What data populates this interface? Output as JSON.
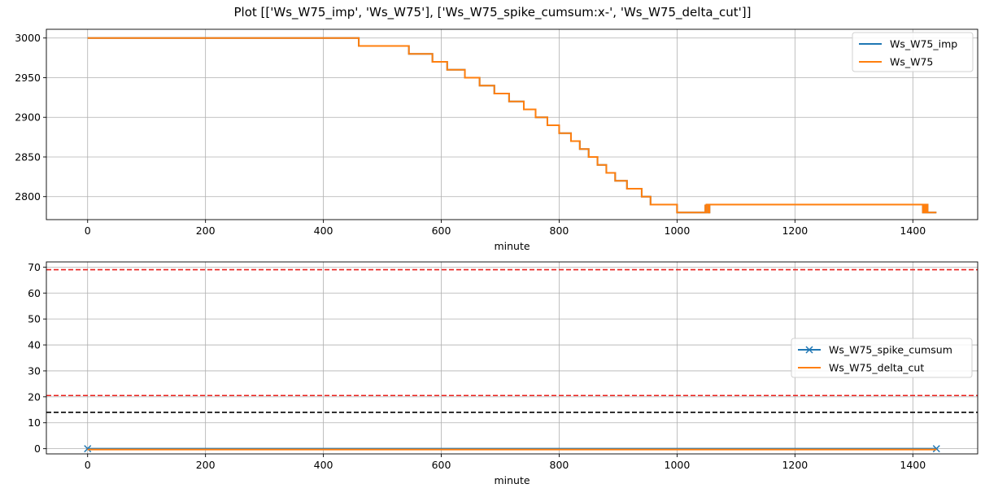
{
  "figure": {
    "title": "Plot [['Ws_W75_imp', 'Ws_W75'], ['Ws_W75_spike_cumsum:x-', 'Ws_W75_delta_cut']]"
  },
  "colors": {
    "blue": "#1f77b4",
    "orange": "#ff7f0e",
    "red_hline": "#e8201c",
    "black_hline": "#000000",
    "grid": "#b0b0b0"
  },
  "chart_data": [
    {
      "type": "line",
      "xlabel": "minute",
      "ylabel": "",
      "xlim": [
        -70,
        1510
      ],
      "ylim": [
        2771,
        3011
      ],
      "xticks": [
        0,
        200,
        400,
        600,
        800,
        1000,
        1200,
        1400
      ],
      "yticks": [
        2800,
        2850,
        2900,
        2950,
        3000
      ],
      "grid": true,
      "legend": "top-right",
      "series": [
        {
          "name": "Ws_W75_imp",
          "style": "-",
          "color": "#1f77b4",
          "x": [
            0,
            460,
            460,
            545,
            545,
            585,
            585,
            610,
            610,
            640,
            640,
            665,
            665,
            690,
            690,
            715,
            715,
            740,
            740,
            760,
            760,
            780,
            780,
            800,
            800,
            820,
            820,
            835,
            835,
            850,
            850,
            865,
            865,
            880,
            880,
            895,
            895,
            915,
            915,
            940,
            940,
            955,
            955,
            1000,
            1000,
            1048,
            1048,
            1048,
            1050,
            1050,
            1053,
            1053,
            1055,
            1055,
            1417,
            1417,
            1419,
            1419,
            1421,
            1421,
            1423,
            1423,
            1425,
            1425,
            1440
          ],
          "y": [
            3000,
            3000,
            2990,
            2990,
            2980,
            2980,
            2970,
            2970,
            2960,
            2960,
            2950,
            2950,
            2940,
            2940,
            2930,
            2930,
            2920,
            2920,
            2910,
            2910,
            2900,
            2900,
            2890,
            2890,
            2880,
            2880,
            2870,
            2870,
            2860,
            2860,
            2850,
            2850,
            2840,
            2840,
            2830,
            2830,
            2820,
            2820,
            2810,
            2810,
            2800,
            2800,
            2790,
            2790,
            2780,
            2780,
            2790,
            2780,
            2780,
            2790,
            2790,
            2780,
            2780,
            2790,
            2790,
            2780,
            2780,
            2790,
            2790,
            2780,
            2780,
            2790,
            2790,
            2780,
            2780
          ]
        },
        {
          "name": "Ws_W75",
          "style": "-",
          "color": "#ff7f0e",
          "x": [
            0,
            460,
            460,
            545,
            545,
            585,
            585,
            610,
            610,
            640,
            640,
            665,
            665,
            690,
            690,
            715,
            715,
            740,
            740,
            760,
            760,
            780,
            780,
            800,
            800,
            820,
            820,
            835,
            835,
            850,
            850,
            865,
            865,
            880,
            880,
            895,
            895,
            915,
            915,
            940,
            940,
            955,
            955,
            1000,
            1000,
            1048,
            1048,
            1048,
            1050,
            1050,
            1053,
            1053,
            1055,
            1055,
            1417,
            1417,
            1419,
            1419,
            1421,
            1421,
            1423,
            1423,
            1425,
            1425,
            1440
          ],
          "y": [
            3000,
            3000,
            2990,
            2990,
            2980,
            2980,
            2970,
            2970,
            2960,
            2960,
            2950,
            2950,
            2940,
            2940,
            2930,
            2930,
            2920,
            2920,
            2910,
            2910,
            2900,
            2900,
            2890,
            2890,
            2880,
            2880,
            2870,
            2870,
            2860,
            2860,
            2850,
            2850,
            2840,
            2840,
            2830,
            2830,
            2820,
            2820,
            2810,
            2810,
            2800,
            2800,
            2790,
            2790,
            2780,
            2780,
            2790,
            2780,
            2780,
            2790,
            2790,
            2780,
            2780,
            2790,
            2790,
            2780,
            2780,
            2790,
            2790,
            2780,
            2780,
            2790,
            2790,
            2780,
            2780
          ]
        }
      ],
      "hlines": []
    },
    {
      "type": "line",
      "xlabel": "minute",
      "ylabel": "",
      "xlim": [
        -70,
        1510
      ],
      "ylim": [
        -2,
        72
      ],
      "xticks": [
        0,
        200,
        400,
        600,
        800,
        1000,
        1200,
        1400
      ],
      "yticks": [
        0,
        10,
        20,
        30,
        40,
        50,
        60,
        70
      ],
      "grid": true,
      "legend": "center-right",
      "series": [
        {
          "name": "Ws_W75_spike_cumsum",
          "style": "x-",
          "color": "#1f77b4",
          "x": [
            0,
            1440
          ],
          "y": [
            0,
            0
          ]
        },
        {
          "name": "Ws_W75_delta_cut",
          "style": "-",
          "color": "#ff7f0e",
          "x": [
            0,
            1440
          ],
          "y": [
            -0.3,
            -0.3
          ]
        }
      ],
      "hlines": [
        {
          "y": 69,
          "color": "#e8201c",
          "style": "dashed"
        },
        {
          "y": 20.5,
          "color": "#e8201c",
          "style": "dashed"
        },
        {
          "y": 14,
          "color": "#000000",
          "style": "dashed"
        }
      ]
    }
  ]
}
